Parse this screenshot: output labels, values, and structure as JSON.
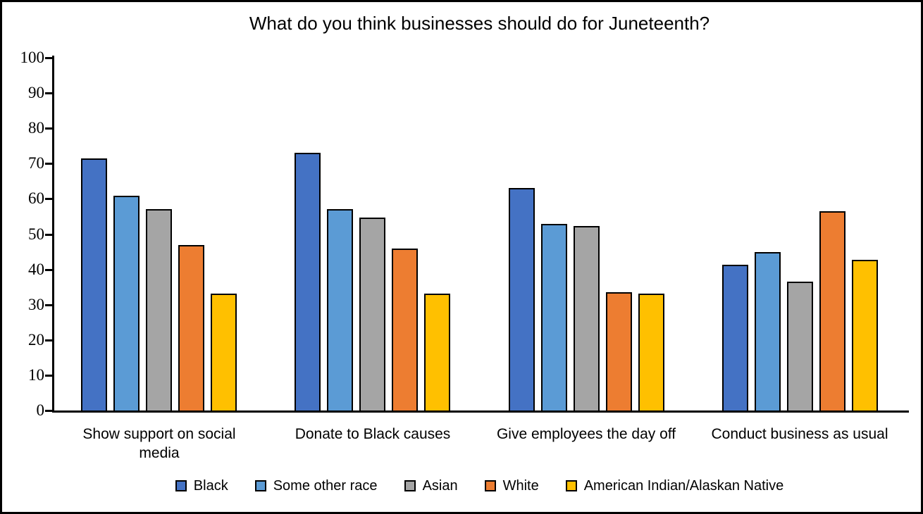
{
  "chart_data": {
    "type": "bar",
    "title": "What do you think businesses should do for Juneteenth?",
    "categories": [
      "Show support on social media",
      "Donate to Black causes",
      "Give employees the day off",
      "Conduct business as usual"
    ],
    "series": [
      {
        "name": "Black",
        "color": "#4472C4",
        "values": [
          71.4,
          73.1,
          63.0,
          41.4
        ]
      },
      {
        "name": "Some other race",
        "color": "#5B9BD5",
        "values": [
          60.9,
          57.0,
          52.8,
          45.0
        ]
      },
      {
        "name": "Asian",
        "color": "#A5A5A5",
        "values": [
          57.1,
          54.6,
          52.3,
          36.5
        ]
      },
      {
        "name": "White",
        "color": "#ED7D31",
        "values": [
          46.9,
          45.9,
          33.5,
          56.4
        ]
      },
      {
        "name": "American Indian/Alaskan Native",
        "color": "#FFC000",
        "values": [
          33.2,
          33.2,
          33.2,
          42.8
        ]
      }
    ],
    "xlabel": "",
    "ylabel": "",
    "ylim": [
      0,
      100
    ],
    "yticks": [
      0,
      10,
      20,
      30,
      40,
      50,
      60,
      70,
      80,
      90,
      100
    ],
    "grid": false,
    "legend_position": "bottom",
    "bar_outline_color": "#000000",
    "axis_color": "#000000"
  }
}
